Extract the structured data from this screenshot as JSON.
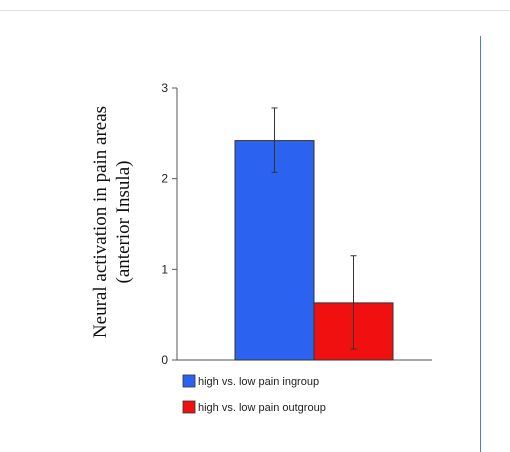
{
  "chart_data": {
    "type": "bar",
    "title": "",
    "ylabel_line1": "Neural activation in pain areas",
    "ylabel_line2": "(anterior Insula)",
    "xlabel": "",
    "ylim": [
      0,
      3
    ],
    "yticks": [
      "0",
      "1",
      "2",
      "3"
    ],
    "grid": false,
    "legend_position": "bottom-left",
    "series": [
      {
        "name": "high vs. low pain ingroup",
        "value": 2.42,
        "error_low": 2.07,
        "error_high": 2.78,
        "color": "#2b63f0"
      },
      {
        "name": "high vs. low pain outgroup",
        "value": 0.63,
        "error_low": 0.12,
        "error_high": 1.15,
        "color": "#f01010"
      }
    ]
  }
}
